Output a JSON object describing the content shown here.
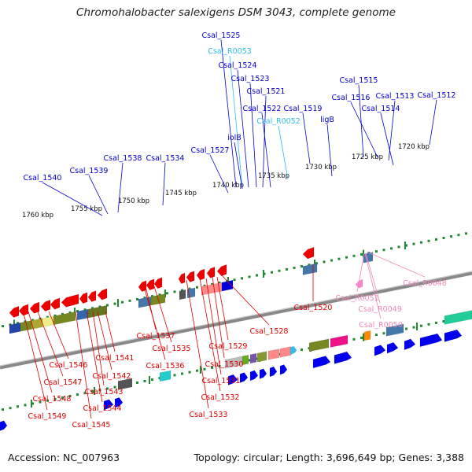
{
  "title": "Chromohalobacter salexigens DSM 3043, complete genome",
  "accession": "Accession: NC_007963",
  "summary": "Topology: circular; Length: 3,696,649 bp; Genes: 3,388",
  "colors": {
    "cds": "#0000ee",
    "rna": "#ff0000",
    "ncrna": "#33bbee",
    "pseudo": "#ff88cc",
    "tick": "#228833",
    "backbone": "#888888"
  },
  "scale_labels": [
    "1760 kbp",
    "1755 kbp",
    "1750 kbp",
    "1745 kbp",
    "1740 kbp",
    "1735 kbp",
    "1730 kbp",
    "1725 kbp",
    "1720 kbp"
  ],
  "top_labels": [
    {
      "text": "Csal_1525",
      "color": "blue"
    },
    {
      "text": "Csal_R0053",
      "color": "cyan"
    },
    {
      "text": "Csal_1524",
      "color": "blue"
    },
    {
      "text": "Csal_1523",
      "color": "blue"
    },
    {
      "text": "Csal_1521",
      "color": "blue"
    },
    {
      "text": "Csal_1522",
      "color": "blue"
    },
    {
      "text": "Csal_1519",
      "color": "blue"
    },
    {
      "text": "Csal_R0052",
      "color": "cyan"
    },
    {
      "text": "Csal_1515",
      "color": "blue"
    },
    {
      "text": "Csal_1516",
      "color": "blue"
    },
    {
      "text": "Csal_1513",
      "color": "blue"
    },
    {
      "text": "Csal_1512",
      "color": "blue"
    },
    {
      "text": "Csal_1514",
      "color": "blue"
    },
    {
      "text": "ligB",
      "color": "blue"
    },
    {
      "text": "Csal_1538",
      "color": "blue"
    },
    {
      "text": "Csal_1534",
      "color": "blue"
    },
    {
      "text": "Csal_1527",
      "color": "blue"
    },
    {
      "text": "Csal_1539",
      "color": "blue"
    },
    {
      "text": "Csal_1540",
      "color": "blue"
    },
    {
      "text": "iolB",
      "color": "blue"
    }
  ],
  "bottom_labels": [
    {
      "text": "Csal_1528",
      "color": "red"
    },
    {
      "text": "Csal_1520",
      "color": "red"
    },
    {
      "text": "Csal_R0048",
      "color": "pink"
    },
    {
      "text": "Csal_R0051",
      "color": "pink"
    },
    {
      "text": "Csal_R0049",
      "color": "pink"
    },
    {
      "text": "Csal_R0050",
      "color": "pink"
    },
    {
      "text": "Csal_1537",
      "color": "red"
    },
    {
      "text": "Csal_1535",
      "color": "red"
    },
    {
      "text": "Csal_1536",
      "color": "red"
    },
    {
      "text": "Csal_1529",
      "color": "red"
    },
    {
      "text": "Csal_1530",
      "color": "red"
    },
    {
      "text": "Csal_1531",
      "color": "red"
    },
    {
      "text": "Csal_1532",
      "color": "red"
    },
    {
      "text": "Csal_1533",
      "color": "red"
    },
    {
      "text": "Csal_1541",
      "color": "red"
    },
    {
      "text": "Csal_1546",
      "color": "red"
    },
    {
      "text": "Csal_1542",
      "color": "red"
    },
    {
      "text": "Csal_1547",
      "color": "red"
    },
    {
      "text": "Csal_1543",
      "color": "red"
    },
    {
      "text": "Csal_1548",
      "color": "red"
    },
    {
      "text": "Csal_1544",
      "color": "red"
    },
    {
      "text": "Csal_1549",
      "color": "red"
    },
    {
      "text": "Csal_1545",
      "color": "red"
    }
  ]
}
